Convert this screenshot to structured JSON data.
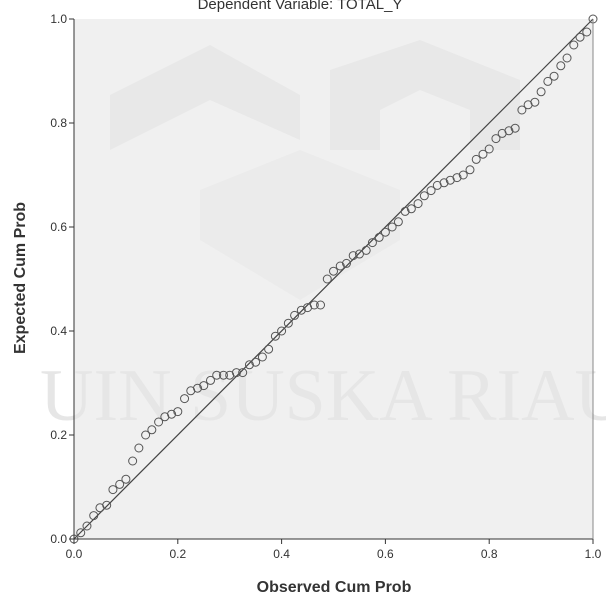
{
  "chart_data": {
    "type": "scatter",
    "title": "Dependent Variable: TOTAL_Y",
    "xlabel": "Observed Cum Prob",
    "ylabel": "Expected Cum Prob",
    "xlim": [
      0,
      1
    ],
    "ylim": [
      0,
      1
    ],
    "x_ticks": [
      "0.0",
      "0.2",
      "0.4",
      "0.6",
      "0.8",
      "1.0"
    ],
    "y_ticks": [
      "0.0",
      "0.2",
      "0.4",
      "0.6",
      "0.8",
      "1.0"
    ],
    "grid": false,
    "reference_line": {
      "from": [
        0,
        0
      ],
      "to": [
        1,
        1
      ]
    },
    "colors": {
      "plot_background": "#f0f0f0",
      "points": "#555555",
      "line": "#444444",
      "axis": "#333333"
    },
    "points": [
      [
        0.0,
        0.0
      ],
      [
        0.013,
        0.012
      ],
      [
        0.025,
        0.025
      ],
      [
        0.038,
        0.045
      ],
      [
        0.05,
        0.06
      ],
      [
        0.063,
        0.065
      ],
      [
        0.075,
        0.095
      ],
      [
        0.088,
        0.105
      ],
      [
        0.1,
        0.115
      ],
      [
        0.113,
        0.15
      ],
      [
        0.125,
        0.175
      ],
      [
        0.138,
        0.2
      ],
      [
        0.15,
        0.21
      ],
      [
        0.163,
        0.225
      ],
      [
        0.175,
        0.235
      ],
      [
        0.188,
        0.24
      ],
      [
        0.2,
        0.245
      ],
      [
        0.213,
        0.27
      ],
      [
        0.225,
        0.285
      ],
      [
        0.238,
        0.29
      ],
      [
        0.25,
        0.295
      ],
      [
        0.263,
        0.305
      ],
      [
        0.275,
        0.315
      ],
      [
        0.288,
        0.315
      ],
      [
        0.3,
        0.315
      ],
      [
        0.313,
        0.32
      ],
      [
        0.325,
        0.32
      ],
      [
        0.338,
        0.335
      ],
      [
        0.35,
        0.34
      ],
      [
        0.363,
        0.35
      ],
      [
        0.375,
        0.365
      ],
      [
        0.388,
        0.39
      ],
      [
        0.4,
        0.4
      ],
      [
        0.413,
        0.415
      ],
      [
        0.425,
        0.43
      ],
      [
        0.438,
        0.44
      ],
      [
        0.45,
        0.445
      ],
      [
        0.463,
        0.45
      ],
      [
        0.475,
        0.45
      ],
      [
        0.488,
        0.5
      ],
      [
        0.5,
        0.515
      ],
      [
        0.513,
        0.525
      ],
      [
        0.525,
        0.53
      ],
      [
        0.538,
        0.545
      ],
      [
        0.55,
        0.548
      ],
      [
        0.563,
        0.555
      ],
      [
        0.575,
        0.57
      ],
      [
        0.588,
        0.58
      ],
      [
        0.6,
        0.59
      ],
      [
        0.613,
        0.6
      ],
      [
        0.625,
        0.61
      ],
      [
        0.638,
        0.63
      ],
      [
        0.65,
        0.635
      ],
      [
        0.663,
        0.645
      ],
      [
        0.675,
        0.66
      ],
      [
        0.688,
        0.67
      ],
      [
        0.7,
        0.68
      ],
      [
        0.713,
        0.685
      ],
      [
        0.725,
        0.69
      ],
      [
        0.738,
        0.695
      ],
      [
        0.75,
        0.7
      ],
      [
        0.763,
        0.71
      ],
      [
        0.775,
        0.73
      ],
      [
        0.788,
        0.74
      ],
      [
        0.8,
        0.75
      ],
      [
        0.813,
        0.77
      ],
      [
        0.825,
        0.78
      ],
      [
        0.838,
        0.785
      ],
      [
        0.85,
        0.79
      ],
      [
        0.863,
        0.825
      ],
      [
        0.875,
        0.835
      ],
      [
        0.888,
        0.84
      ],
      [
        0.9,
        0.86
      ],
      [
        0.913,
        0.88
      ],
      [
        0.925,
        0.89
      ],
      [
        0.938,
        0.91
      ],
      [
        0.95,
        0.925
      ],
      [
        0.963,
        0.95
      ],
      [
        0.975,
        0.965
      ],
      [
        0.988,
        0.975
      ],
      [
        1.0,
        1.0
      ]
    ]
  },
  "watermark": {
    "text": "UIN SUSKA RIAU"
  }
}
